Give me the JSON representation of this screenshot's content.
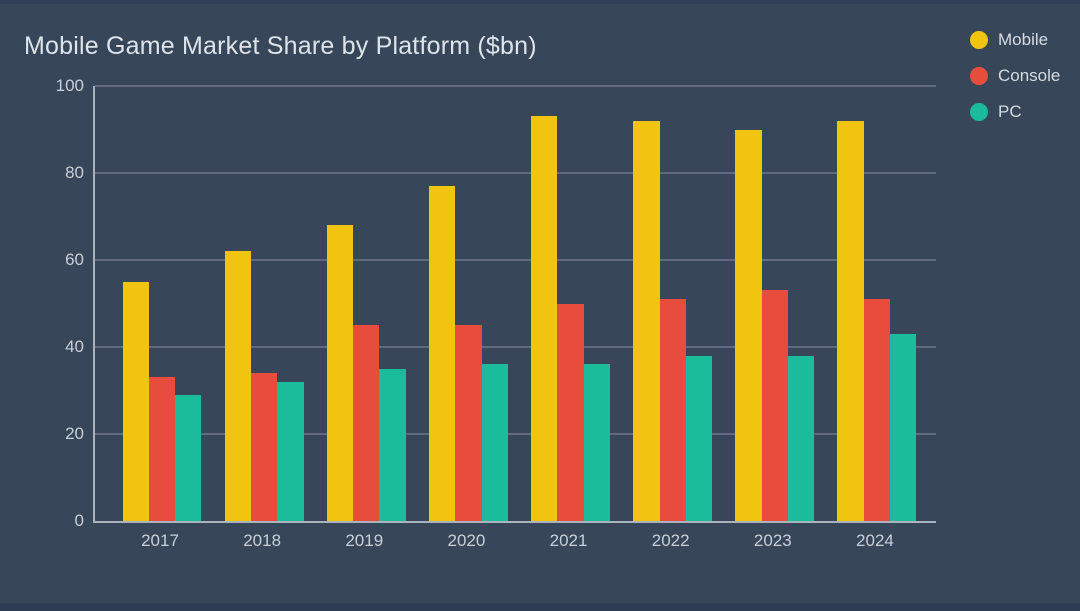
{
  "page": {
    "background_color": "#38465a",
    "top_edge_color": "#314055",
    "bottom_edge_color": "#2e3c51"
  },
  "chart_data": {
    "type": "bar",
    "title": "Mobile Game Market Share by Platform ($bn)",
    "categories": [
      "2017",
      "2018",
      "2019",
      "2020",
      "2021",
      "2022",
      "2023",
      "2024"
    ],
    "series": [
      {
        "name": "Mobile",
        "color": "#f1c40f",
        "values": [
          55,
          62,
          68,
          77,
          93,
          92,
          90,
          92
        ]
      },
      {
        "name": "Console",
        "color": "#e74c3c",
        "values": [
          33,
          34,
          45,
          45,
          50,
          51,
          53,
          51
        ]
      },
      {
        "name": "PC",
        "color": "#1abc9c",
        "values": [
          29,
          32,
          35,
          36,
          36,
          38,
          38,
          43
        ]
      }
    ],
    "xlabel": "",
    "ylabel": "",
    "ylim": [
      0,
      100
    ],
    "yticks": [
      0,
      20,
      40,
      60,
      80,
      100
    ],
    "grid": true,
    "legend_position": "top-right",
    "axis_color": "#a9b4bf",
    "gridline_color": "rgba(200,210,220,0.28)",
    "tick_label_color": "#c7d0d8",
    "title_color": "#dde4ea"
  }
}
